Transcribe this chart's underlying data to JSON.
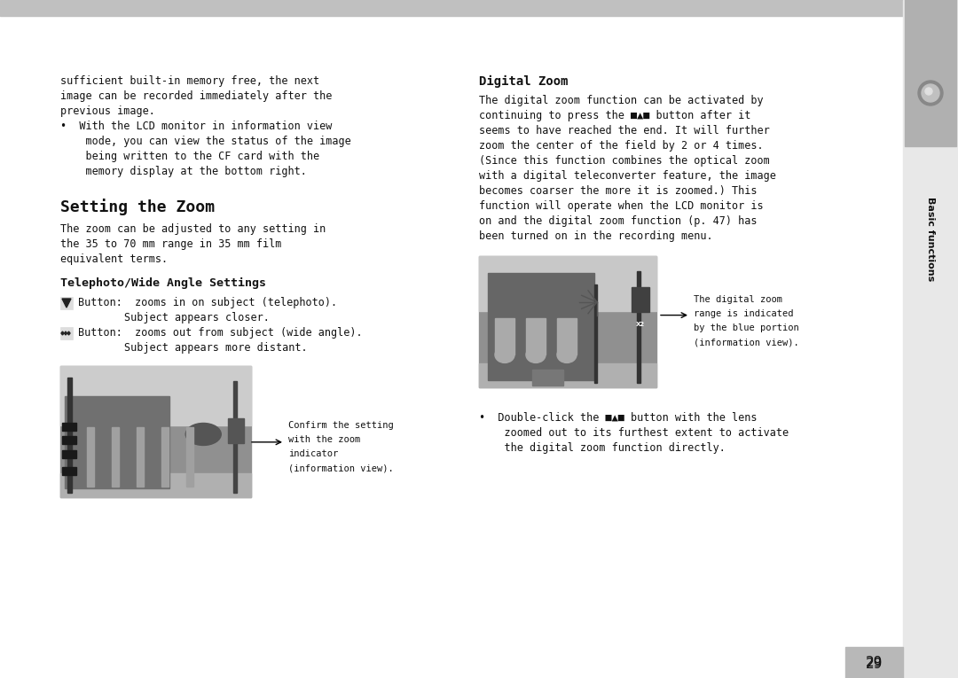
{
  "bg_color": "#e8e8e8",
  "page_bg": "#ffffff",
  "header_bar_color": "#c0c0c0",
  "sidebar_bg": "#e8e8e8",
  "sidebar_tab_color": "#b0b0b0",
  "page_number": "29",
  "sidebar_text": "Basic functions",
  "top_text": [
    "sufficient built-in memory free, the next",
    "image can be recorded immediately after the",
    "previous image.",
    "•  With the LCD monitor in information view",
    "    mode, you can view the status of the image",
    "    being written to the CF card with the",
    "    memory display at the bottom right."
  ],
  "section_title": "Setting the Zoom",
  "section_body": [
    "The zoom can be adjusted to any setting in",
    "the 35 to 70 mm range in 35 mm film",
    "equivalent terms."
  ],
  "subsection_title": "Telephoto/Wide Angle Settings",
  "tele_line1": "Button:  zooms in on subject (telephoto).",
  "tele_line1b": "Subject appears closer.",
  "tele_line2": "Button:  zooms out from subject (wide angle).",
  "tele_line2b": "Subject appears more distant.",
  "caption_left": [
    "Confirm the setting",
    "with the zoom",
    "indicator",
    "(information view)."
  ],
  "digital_title": "Digital Zoom",
  "digital_body": [
    "The digital zoom function can be activated by",
    "continuing to press the ■▲■ button after it",
    "seems to have reached the end. It will further",
    "zoom the center of the field by 2 or 4 times.",
    "(Since this function combines the optical zoom",
    "with a digital teleconverter feature, the image",
    "becomes coarser the more it is zoomed.) This",
    "function will operate when the LCD monitor is",
    "on and the digital zoom function (p. 47) has",
    "been turned on in the recording menu."
  ],
  "caption_right": [
    "The digital zoom",
    "range is indicated",
    "by the blue portion",
    "(information view)."
  ],
  "bullet_bottom": [
    "•  Double-click the ■▲■ button with the lens",
    "    zoomed out to its furthest extent to activate",
    "    the digital zoom function directly."
  ]
}
